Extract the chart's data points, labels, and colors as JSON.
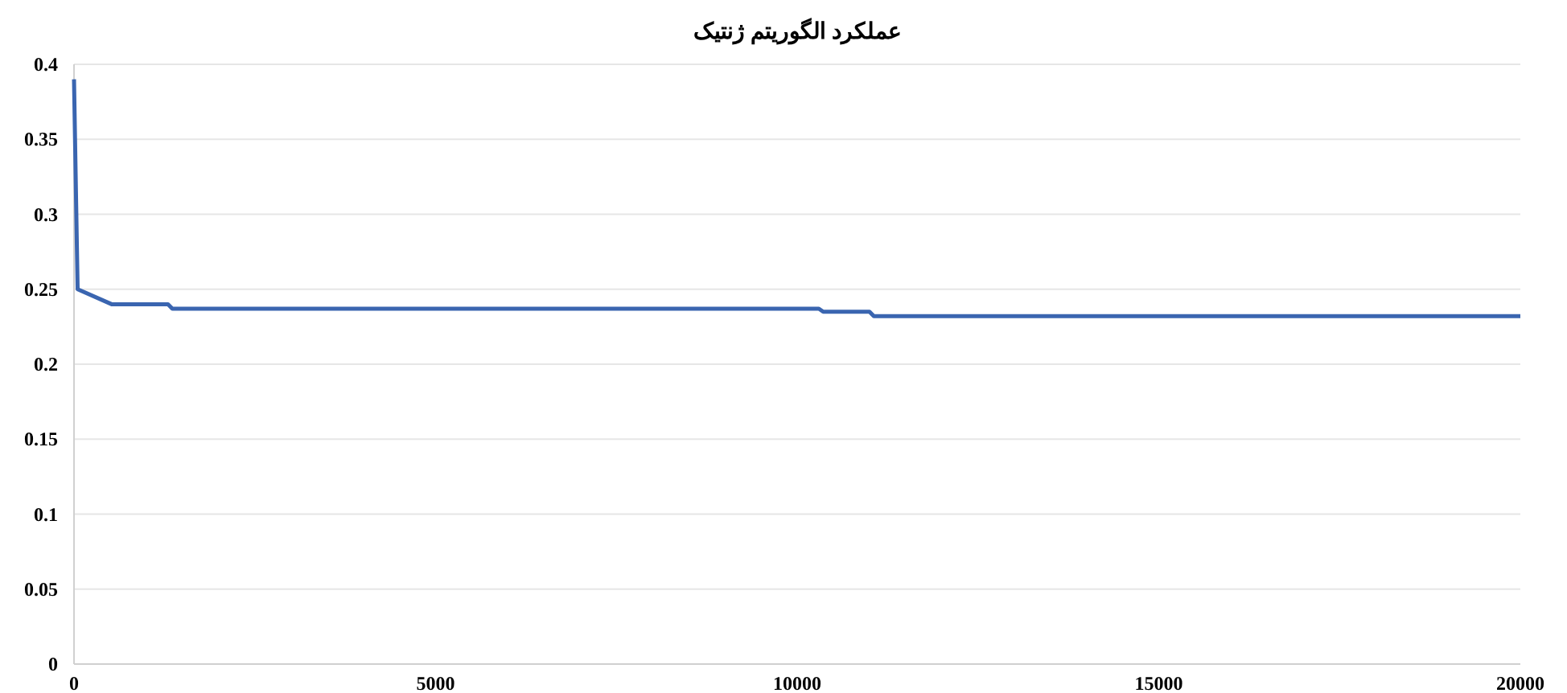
{
  "chart_data": {
    "type": "line",
    "title": "عملکرد الگوریتم ژنتیک",
    "x": [
      0,
      50,
      520,
      1300,
      1360,
      10300,
      10360,
      11000,
      11060,
      20000
    ],
    "series": [
      {
        "color": "#3a65b0",
        "values": [
          0.39,
          0.25,
          0.24,
          0.24,
          0.237,
          0.237,
          0.235,
          0.235,
          0.232,
          0.232
        ]
      }
    ],
    "xlim": [
      0,
      20000
    ],
    "xticks": [
      0,
      5000,
      10000,
      15000,
      20000
    ],
    "ylim": [
      0,
      0.4
    ],
    "yticks": [
      0,
      0.05,
      0.1,
      0.15,
      0.2,
      0.25,
      0.3,
      0.35,
      0.4
    ],
    "grid": "y",
    "marker": "none",
    "line_style": "solid"
  }
}
